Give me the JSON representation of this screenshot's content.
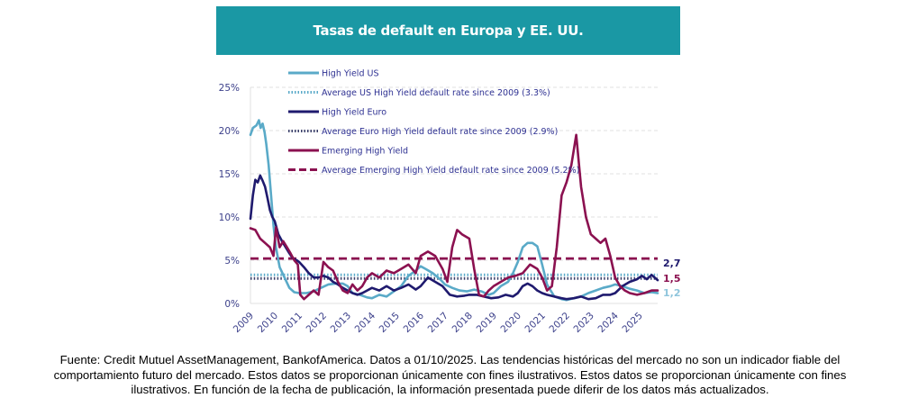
{
  "chart_data": {
    "type": "line",
    "title": "Tasas de default en Europa y EE. UU.",
    "xlabel": "",
    "ylabel": "",
    "ylim": [
      0,
      25
    ],
    "xlim": [
      2009,
      2025.75
    ],
    "grid": true,
    "legend_position": "top-center",
    "y_ticks": [
      "0%",
      "5%",
      "10%",
      "15%",
      "20%",
      "25%"
    ],
    "y_tick_values": [
      0,
      5,
      10,
      15,
      20,
      25
    ],
    "x_ticks": [
      "2009",
      "2010",
      "2011",
      "2012",
      "2013",
      "2014",
      "2015",
      "2016",
      "2017",
      "2018",
      "2019",
      "2020",
      "2021",
      "2022",
      "2023",
      "2024",
      "2025"
    ],
    "x_tick_values": [
      2009,
      2010,
      2011,
      2012,
      2013,
      2014,
      2015,
      2016,
      2017,
      2018,
      2019,
      2020,
      2021,
      2022,
      2023,
      2024,
      2025
    ],
    "series": [
      {
        "name": "High Yield US",
        "color": "#5aaac8",
        "style": "solid",
        "x": [
          2009.0,
          2009.1,
          2009.25,
          2009.35,
          2009.42,
          2009.5,
          2009.58,
          2009.65,
          2009.75,
          2009.85,
          2009.95,
          2010.05,
          2010.2,
          2010.4,
          2010.6,
          2010.8,
          2011.0,
          2011.3,
          2011.6,
          2011.9,
          2012.2,
          2012.5,
          2012.8,
          2013.0,
          2013.2,
          2013.5,
          2013.8,
          2014.0,
          2014.3,
          2014.6,
          2014.9,
          2015.2,
          2015.5,
          2015.8,
          2016.0,
          2016.2,
          2016.5,
          2016.8,
          2017.0,
          2017.3,
          2017.6,
          2017.9,
          2018.2,
          2018.5,
          2018.8,
          2019.0,
          2019.3,
          2019.6,
          2019.8,
          2020.0,
          2020.2,
          2020.4,
          2020.6,
          2020.8,
          2021.0,
          2021.2,
          2021.5,
          2021.8,
          2022.0,
          2022.3,
          2022.6,
          2022.9,
          2023.2,
          2023.5,
          2023.8,
          2024.0,
          2024.3,
          2024.6,
          2024.9,
          2025.2,
          2025.5,
          2025.75
        ],
        "y": [
          19.5,
          20.3,
          20.6,
          21.2,
          20.3,
          20.8,
          19.8,
          18.5,
          16.0,
          12.5,
          9.0,
          6.5,
          4.2,
          3.0,
          1.8,
          1.3,
          1.2,
          1.2,
          1.4,
          1.8,
          2.2,
          2.3,
          2.3,
          2.0,
          1.2,
          1.0,
          0.7,
          0.6,
          1.0,
          0.8,
          1.4,
          2.0,
          3.2,
          3.8,
          4.3,
          4.0,
          3.5,
          2.8,
          2.2,
          1.8,
          1.5,
          1.4,
          1.6,
          1.4,
          1.0,
          1.2,
          2.0,
          2.5,
          3.5,
          4.8,
          6.5,
          7.0,
          7.0,
          6.6,
          4.5,
          2.2,
          0.8,
          0.5,
          0.4,
          0.6,
          0.8,
          1.2,
          1.5,
          1.8,
          2.0,
          2.2,
          2.0,
          1.7,
          1.5,
          1.2,
          1.3,
          1.2
        ]
      },
      {
        "name": "Average US High Yield default rate since 2009 (3.3%)",
        "color": "#5aaac8",
        "style": "dotted",
        "x": [
          2009,
          2025.75
        ],
        "y": [
          3.3,
          3.3
        ]
      },
      {
        "name": "High Yield Euro",
        "color": "#1f1a6e",
        "style": "solid",
        "x": [
          2009.0,
          2009.1,
          2009.2,
          2009.3,
          2009.4,
          2009.5,
          2009.6,
          2009.7,
          2009.8,
          2009.9,
          2010.0,
          2010.15,
          2010.3,
          2010.45,
          2010.6,
          2010.75,
          2010.9,
          2011.0,
          2011.2,
          2011.4,
          2011.6,
          2011.8,
          2012.0,
          2012.2,
          2012.4,
          2012.6,
          2012.8,
          2013.0,
          2013.2,
          2013.4,
          2013.6,
          2013.8,
          2014.0,
          2014.3,
          2014.6,
          2014.9,
          2015.2,
          2015.5,
          2015.8,
          2016.0,
          2016.3,
          2016.6,
          2016.9,
          2017.2,
          2017.5,
          2017.8,
          2018.0,
          2018.3,
          2018.6,
          2018.9,
          2019.2,
          2019.5,
          2019.8,
          2020.0,
          2020.2,
          2020.4,
          2020.6,
          2020.8,
          2021.0,
          2021.2,
          2021.5,
          2021.8,
          2022.0,
          2022.3,
          2022.6,
          2022.9,
          2023.2,
          2023.5,
          2023.8,
          2024.0,
          2024.3,
          2024.6,
          2024.9,
          2025.1,
          2025.3,
          2025.5,
          2025.75
        ],
        "y": [
          9.8,
          12.5,
          14.3,
          14.0,
          14.8,
          14.2,
          13.5,
          12.2,
          10.8,
          10.0,
          9.5,
          8.0,
          7.2,
          6.5,
          5.8,
          5.2,
          5.0,
          4.8,
          4.2,
          3.5,
          3.0,
          3.0,
          3.2,
          3.0,
          2.5,
          2.2,
          1.8,
          1.5,
          1.2,
          1.0,
          1.2,
          1.5,
          1.8,
          1.5,
          2.0,
          1.5,
          1.8,
          2.2,
          1.6,
          2.0,
          3.0,
          2.5,
          2.0,
          1.0,
          0.8,
          0.9,
          1.0,
          1.0,
          0.8,
          0.6,
          0.7,
          1.0,
          0.8,
          1.2,
          2.0,
          2.3,
          2.0,
          1.5,
          1.2,
          1.0,
          0.8,
          0.6,
          0.5,
          0.6,
          0.8,
          0.5,
          0.6,
          1.0,
          1.0,
          1.2,
          2.0,
          2.5,
          2.8,
          3.2,
          2.8,
          3.3,
          2.7
        ]
      },
      {
        "name": "Average Euro High Yield default rate since 2009 (2.9%)",
        "color": "#3a3f6a",
        "style": "dotted",
        "x": [
          2009,
          2025.75
        ],
        "y": [
          2.9,
          2.9
        ]
      },
      {
        "name": "Emerging High Yield",
        "color": "#8b1150",
        "style": "solid",
        "x": [
          2009.0,
          2009.2,
          2009.4,
          2009.6,
          2009.8,
          2009.95,
          2010.05,
          2010.2,
          2010.35,
          2010.5,
          2010.65,
          2010.8,
          2010.95,
          2011.05,
          2011.2,
          2011.4,
          2011.6,
          2011.8,
          2012.0,
          2012.2,
          2012.4,
          2012.6,
          2012.8,
          2013.0,
          2013.2,
          2013.4,
          2013.6,
          2013.8,
          2014.0,
          2014.3,
          2014.6,
          2014.9,
          2015.2,
          2015.5,
          2015.8,
          2016.0,
          2016.3,
          2016.6,
          2016.9,
          2017.1,
          2017.3,
          2017.5,
          2017.7,
          2018.0,
          2018.2,
          2018.4,
          2018.6,
          2018.8,
          2019.0,
          2019.3,
          2019.6,
          2019.9,
          2020.2,
          2020.5,
          2020.8,
          2021.0,
          2021.2,
          2021.4,
          2021.6,
          2021.8,
          2022.0,
          2022.2,
          2022.4,
          2022.6,
          2022.8,
          2023.0,
          2023.2,
          2023.4,
          2023.6,
          2023.8,
          2024.0,
          2024.2,
          2024.4,
          2024.6,
          2024.9,
          2025.2,
          2025.5,
          2025.75
        ],
        "y": [
          8.7,
          8.5,
          7.5,
          7.0,
          6.5,
          5.5,
          8.8,
          6.5,
          7.2,
          6.5,
          5.8,
          5.0,
          4.5,
          1.0,
          0.5,
          1.0,
          1.5,
          1.0,
          4.8,
          4.2,
          3.8,
          2.5,
          1.5,
          1.2,
          2.2,
          1.5,
          2.0,
          3.0,
          3.5,
          3.0,
          3.8,
          3.5,
          4.0,
          4.5,
          3.5,
          5.5,
          6.0,
          5.5,
          4.0,
          2.5,
          6.5,
          8.5,
          8.0,
          7.5,
          4.0,
          1.0,
          0.8,
          1.5,
          2.0,
          2.5,
          3.0,
          3.2,
          3.5,
          4.5,
          4.0,
          3.0,
          1.5,
          2.0,
          6.5,
          12.5,
          14.0,
          16.0,
          19.5,
          13.5,
          10.0,
          8.0,
          7.5,
          7.0,
          7.5,
          5.5,
          3.0,
          2.0,
          1.5,
          1.2,
          1.0,
          1.2,
          1.5,
          1.5
        ]
      },
      {
        "name": "Average Emerging High Yield default rate since 2009 (5.2%)",
        "color": "#8b1150",
        "style": "dashed",
        "x": [
          2009,
          2025.75
        ],
        "y": [
          5.2,
          5.2
        ]
      }
    ],
    "end_labels": [
      {
        "text": "2,7",
        "color": "#1f1a6e"
      },
      {
        "text": "1,5",
        "color": "#8b1150"
      },
      {
        "text": "1,2",
        "color": "#8ec5dc"
      }
    ]
  },
  "footer": {
    "lines": [
      "Fuente: Credit Mutuel AssetManagement, BankofAmerica. Datos a 01/10/2025. Las tendencias históricas del mercado no son un indicador fiable del",
      "comportamiento futuro del mercado. Estos datos se proporcionan únicamente con fines ilustrativos. Estos datos se proporcionan únicamente con fines",
      "ilustrativos. En función de la fecha de publicación, la información presentada puede diferir de los datos más actualizados."
    ]
  }
}
